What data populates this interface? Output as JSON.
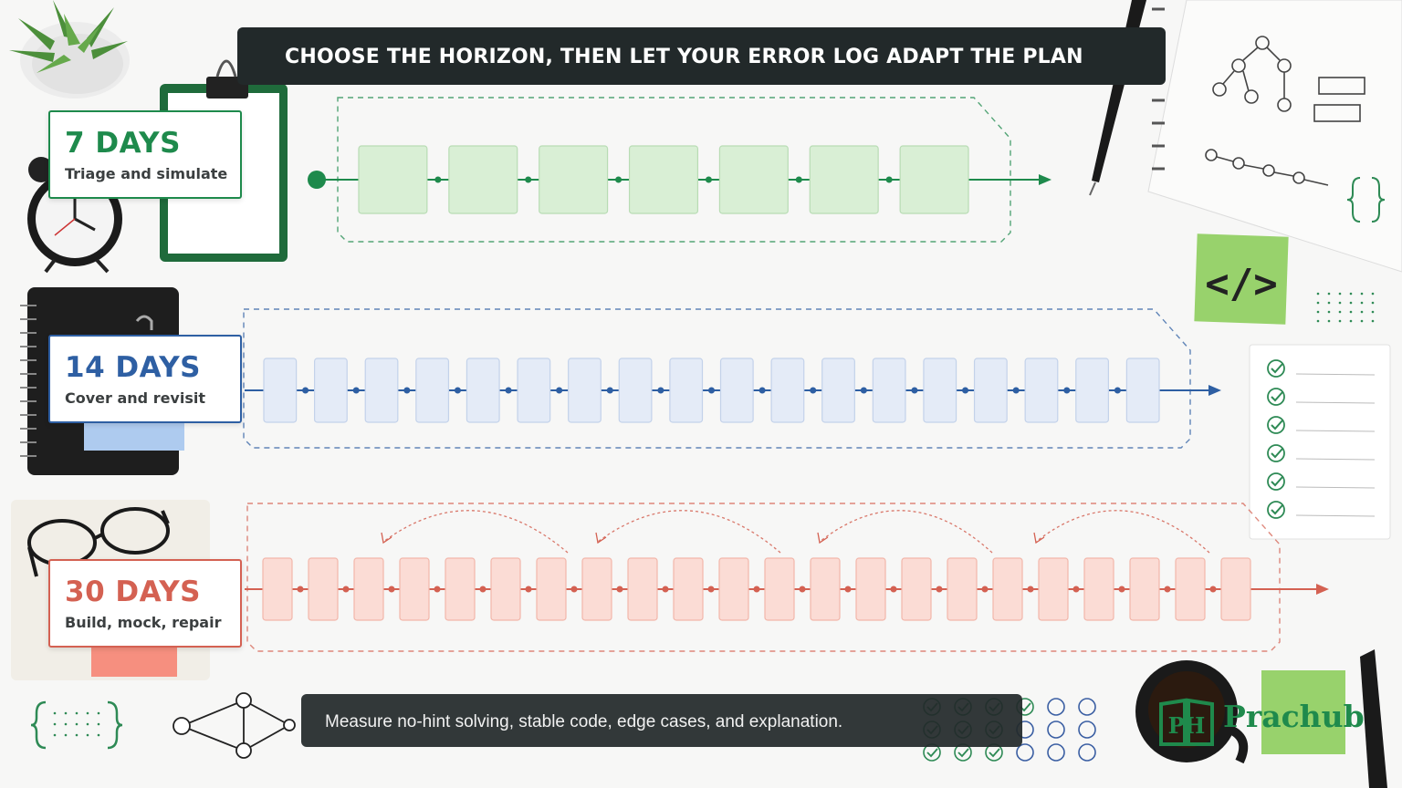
{
  "title": "CHOOSE THE HORIZON, THEN LET YOUR ERROR LOG ADAPT THE PLAN",
  "plans": [
    {
      "days_label": "7 DAYS",
      "subtitle": "Triage and simulate",
      "color": "#1e8a4c",
      "fill": "#d9efd5",
      "stroke": "#b8dcb4",
      "steps": 7
    },
    {
      "days_label": "14 DAYS",
      "subtitle": "Cover and revisit",
      "color": "#2e5fa3",
      "fill": "#e4ebf7",
      "stroke": "#c3d2ea",
      "steps": 18
    },
    {
      "days_label": "30 DAYS",
      "subtitle": "Build, mock, repair",
      "color": "#d46152",
      "fill": "#fbdcd5",
      "stroke": "#f2b6aa",
      "steps": 22
    }
  ],
  "caption": "Measure no-hint solving, stable code, edge cases, and explanation.",
  "brand": {
    "name": "Prachub",
    "monogram": "PH"
  },
  "sticky_note_code": "</>",
  "icons": [
    "succulent-plant-icon",
    "alarm-clock-icon",
    "clipboard-icon",
    "notebook-icon",
    "eyeglasses-icon",
    "pen-icon",
    "tree-diagram-icon",
    "checklist-icon",
    "coffee-mug-icon",
    "braces-icon"
  ]
}
